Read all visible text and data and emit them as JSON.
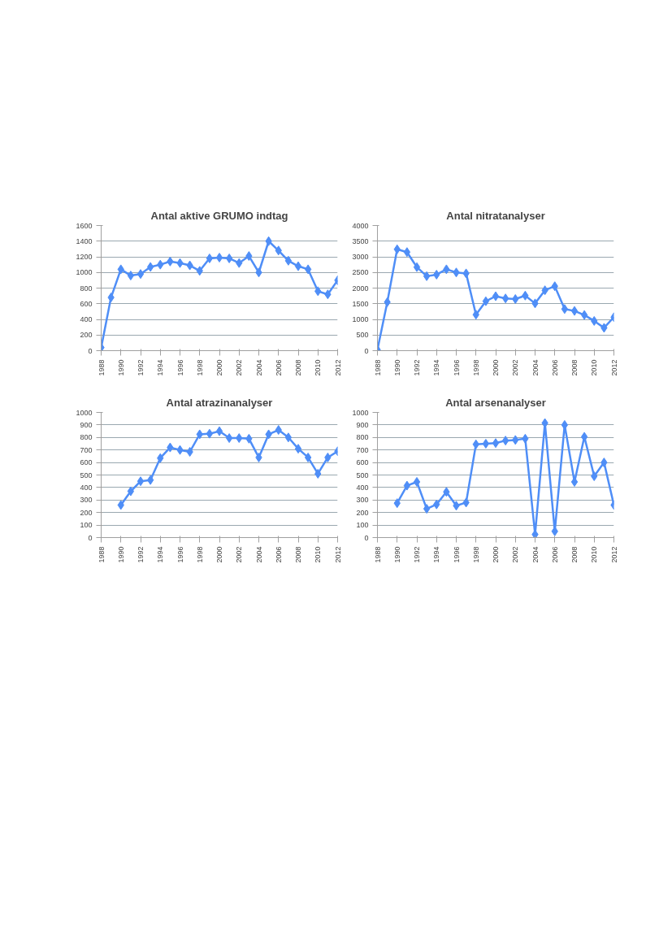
{
  "chart_data": [
    {
      "type": "line",
      "title": "Antal aktive GRUMO indtag",
      "marker": "diamond",
      "grid": "y",
      "x": [
        1988,
        1989,
        1990,
        1991,
        1992,
        1993,
        1994,
        1995,
        1996,
        1997,
        1998,
        1999,
        2000,
        2001,
        2002,
        2003,
        2004,
        2005,
        2006,
        2007,
        2008,
        2009,
        2010,
        2011,
        2012
      ],
      "xlim": [
        1988,
        2012
      ],
      "xticks": [
        1988,
        1990,
        1992,
        1994,
        1996,
        1998,
        2000,
        2002,
        2004,
        2006,
        2008,
        2010,
        2012
      ],
      "ylim": [
        0,
        1600
      ],
      "yticks": [
        0,
        200,
        400,
        600,
        800,
        1000,
        1200,
        1400,
        1600
      ],
      "series": [
        {
          "color": "#4f8ef7",
          "values": [
            40,
            680,
            1040,
            960,
            980,
            1070,
            1100,
            1140,
            1120,
            1090,
            1020,
            1180,
            1190,
            1180,
            1120,
            1210,
            1000,
            1400,
            1280,
            1150,
            1080,
            1040,
            760,
            720,
            900
          ]
        }
      ]
    },
    {
      "type": "line",
      "title": "Antal nitratanalyser",
      "marker": "diamond",
      "grid": "y",
      "x": [
        1988,
        1989,
        1990,
        1991,
        1992,
        1993,
        1994,
        1995,
        1996,
        1997,
        1998,
        1999,
        2000,
        2001,
        2002,
        2003,
        2004,
        2005,
        2006,
        2007,
        2008,
        2009,
        2010,
        2011,
        2012
      ],
      "xlim": [
        1988,
        2012
      ],
      "xticks": [
        1988,
        1990,
        1992,
        1994,
        1996,
        1998,
        2000,
        2002,
        2004,
        2006,
        2008,
        2010,
        2012
      ],
      "ylim": [
        0,
        4000
      ],
      "yticks": [
        0,
        500,
        1000,
        1500,
        2000,
        2500,
        3000,
        3500,
        4000
      ],
      "series": [
        {
          "color": "#4f8ef7",
          "values": [
            30,
            1550,
            3240,
            3150,
            2670,
            2380,
            2430,
            2600,
            2500,
            2470,
            1150,
            1580,
            1740,
            1670,
            1650,
            1760,
            1510,
            1930,
            2060,
            1330,
            1270,
            1140,
            950,
            730,
            1070
          ]
        }
      ]
    },
    {
      "type": "line",
      "title": "Antal atrazinanalyser",
      "marker": "diamond",
      "grid": "y",
      "xlim": [
        1988,
        2012
      ],
      "xticks": [
        1988,
        1990,
        1992,
        1994,
        1996,
        1998,
        2000,
        2002,
        2004,
        2006,
        2008,
        2010,
        2012
      ],
      "ylim": [
        0,
        1000
      ],
      "yticks": [
        0,
        100,
        200,
        300,
        400,
        500,
        600,
        700,
        800,
        900,
        1000
      ],
      "series": [
        {
          "color": "#4f8ef7",
          "x": [
            1990,
            1991,
            1992,
            1993,
            1994,
            1995,
            1996,
            1997,
            1998,
            1999,
            2000,
            2001,
            2002,
            2003,
            2004,
            2005,
            2006,
            2007,
            2008,
            2009,
            2010,
            2011,
            2012
          ],
          "values": [
            260,
            370,
            450,
            460,
            635,
            720,
            700,
            685,
            825,
            830,
            850,
            795,
            795,
            790,
            640,
            825,
            860,
            800,
            710,
            640,
            510,
            640,
            690
          ]
        }
      ]
    },
    {
      "type": "line",
      "title": "Antal arsenanalyser",
      "marker": "diamond",
      "grid": "y",
      "xlim": [
        1988,
        2012
      ],
      "xticks": [
        1988,
        1990,
        1992,
        1994,
        1996,
        1998,
        2000,
        2002,
        2004,
        2006,
        2008,
        2010,
        2012
      ],
      "ylim": [
        0,
        1000
      ],
      "yticks": [
        0,
        100,
        200,
        300,
        400,
        500,
        600,
        700,
        800,
        900,
        1000
      ],
      "series": [
        {
          "color": "#4f8ef7",
          "x": [
            1990,
            1991,
            1992,
            1993,
            1994,
            1995,
            1996,
            1997,
            1998,
            1999,
            2000,
            2001,
            2002,
            2003,
            2004,
            2005,
            2006,
            2007,
            2008,
            2009,
            2010,
            2011,
            2012
          ],
          "values": [
            275,
            415,
            445,
            230,
            265,
            365,
            255,
            280,
            745,
            750,
            755,
            775,
            780,
            790,
            25,
            915,
            50,
            900,
            445,
            805,
            490,
            600,
            260
          ]
        }
      ]
    }
  ]
}
